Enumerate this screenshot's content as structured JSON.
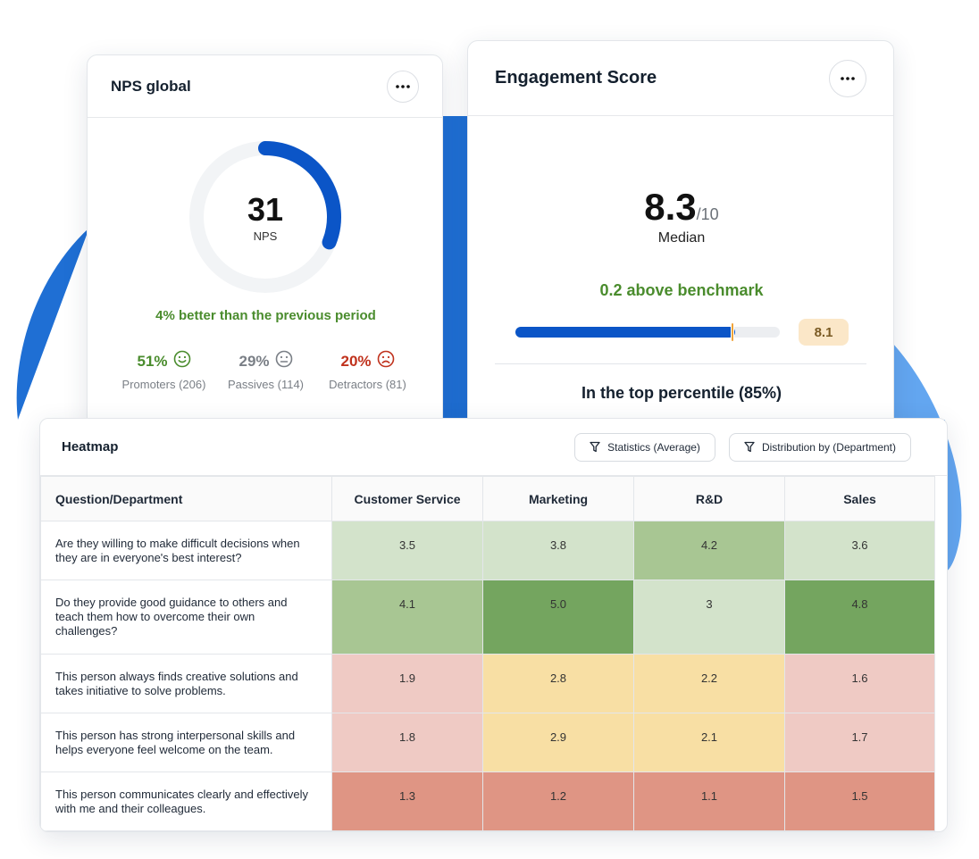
{
  "colors": {
    "brand_blue": "#0b55c7",
    "positive_green": "#4a8c2d",
    "neutral_grey": "#7a7f86",
    "negative_red": "#c0321d",
    "benchmark_marker": "#f0a33a"
  },
  "nps_card": {
    "title": "NPS global",
    "more_icon": "more-horizontal-icon",
    "score": "31",
    "score_label": "NPS",
    "gauge_fraction": 0.31,
    "delta_text": "4% better than the previous period",
    "groups": [
      {
        "pct": "51%",
        "label": "Promoters (206)",
        "icon": "smile-face-icon",
        "color": "#4a8c2d"
      },
      {
        "pct": "29%",
        "label": "Passives (114)",
        "icon": "neutral-face-icon",
        "color": "#7a7f86"
      },
      {
        "pct": "20%",
        "label": "Detractors (81)",
        "icon": "frown-face-icon",
        "color": "#c0321d"
      }
    ]
  },
  "engagement_card": {
    "title": "Engagement Score",
    "more_icon": "more-horizontal-icon",
    "score": "8.3",
    "denominator": "/10",
    "score_label": "Median",
    "benchmark_text": "0.2 above benchmark",
    "score_value": 8.3,
    "benchmark_value": 8.1,
    "scale_max": 10,
    "benchmark_badge": "8.1",
    "percentile_text": "In the top percentile (85%)"
  },
  "heatmap": {
    "title": "Heatmap",
    "buttons": [
      {
        "label": "Statistics (Average)",
        "icon": "filter-icon"
      },
      {
        "label": "Distribution by (Department)",
        "icon": "filter-icon"
      }
    ],
    "header_question": "Question/Department",
    "departments": [
      "Customer Service",
      "Marketing",
      "R&D",
      "Sales"
    ],
    "rows": [
      {
        "question": "Are they willing to make difficult decisions when they are in everyone's best interest?",
        "values": [
          "3.5",
          "3.8",
          "4.2",
          "3.6"
        ],
        "cell_colors": [
          "#d3e3cb",
          "#d3e3cb",
          "#a8c693",
          "#d3e3cb"
        ]
      },
      {
        "question": "Do they provide good guidance to others and teach them how to overcome their own challenges?",
        "values": [
          "4.1",
          "5.0",
          "3",
          "4.8"
        ],
        "cell_colors": [
          "#a8c693",
          "#74a55f",
          "#d3e3cb",
          "#74a55f"
        ]
      },
      {
        "question": "This person always finds creative solutions and takes initiative to solve problems.",
        "values": [
          "1.9",
          "2.8",
          "2.2",
          "1.6"
        ],
        "cell_colors": [
          "#efcac4",
          "#f8dfa4",
          "#f8dfa4",
          "#efcac4"
        ]
      },
      {
        "question": "This person has strong interpersonal skills and helps everyone feel welcome on the team.",
        "values": [
          "1.8",
          "2.9",
          "2.1",
          "1.7"
        ],
        "cell_colors": [
          "#efcac4",
          "#f8dfa4",
          "#f8dfa4",
          "#efcac4"
        ]
      },
      {
        "question": "This person communicates clearly and effectively with me and their colleagues.",
        "values": [
          "1.3",
          "1.2",
          "1.1",
          "1.5"
        ],
        "cell_colors": [
          "#df9584",
          "#df9584",
          "#df9584",
          "#df9584"
        ]
      }
    ]
  }
}
